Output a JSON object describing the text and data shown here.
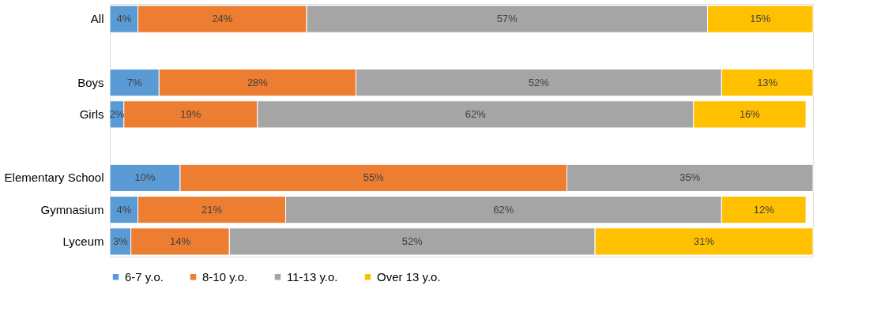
{
  "chart_data": {
    "type": "bar",
    "orientation": "horizontal",
    "stacked": true,
    "categories": [
      "All",
      null,
      "Boys",
      "Girls",
      null,
      "Elementary School",
      "Gymnasium",
      "Lyceum"
    ],
    "xlim": [
      0,
      100
    ],
    "tick_labels": "y",
    "grid": false,
    "legend": "bottom",
    "data_labels": false,
    "series": [
      {
        "name": "6-7 y.o.",
        "color": "#5b9bd5",
        "values": [
          4,
          null,
          7,
          2,
          null,
          10,
          4,
          3
        ],
        "value_labels": [
          "4%",
          null,
          "7%",
          "2%",
          null,
          "10%",
          "4%",
          "3%"
        ]
      },
      {
        "name": "8-10 y.o.",
        "color": "#ed7d31",
        "values": [
          24,
          null,
          28,
          19,
          null,
          55,
          21,
          14
        ],
        "value_labels": [
          "24%",
          null,
          "28%",
          "19%",
          null,
          "55%",
          "21%",
          "14%"
        ]
      },
      {
        "name": "11-13 y.o.",
        "color": "#a5a5a5",
        "values": [
          57,
          null,
          52,
          62,
          null,
          35,
          62,
          52
        ],
        "value_labels": [
          "57%",
          null,
          "52%",
          "62%",
          null,
          "35%",
          "62%",
          "52%"
        ]
      },
      {
        "name": "Over 13 y.o.",
        "color": "#ffc000",
        "values": [
          15,
          null,
          13,
          16,
          null,
          null,
          12,
          31
        ],
        "value_labels": [
          "15%",
          null,
          "13%",
          "16%",
          null,
          null,
          "12%",
          "31%"
        ]
      }
    ]
  }
}
